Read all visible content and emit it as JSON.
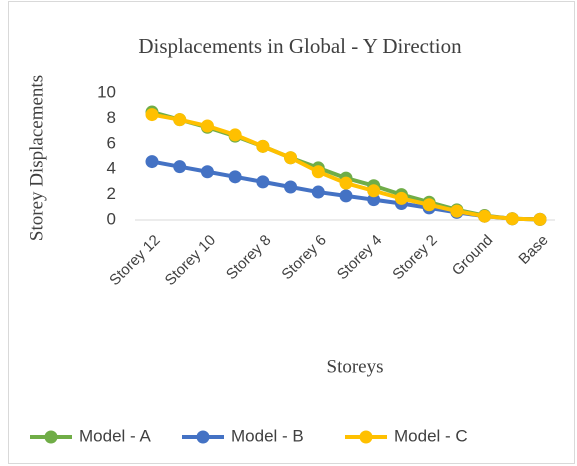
{
  "chart_data": {
    "type": "line",
    "title": "Displacements in Global - Y Direction",
    "x_label": "Storeys",
    "y_label": "Storey Displacements",
    "categories": [
      "Storey 12",
      null,
      "Storey 10",
      null,
      "Storey 8",
      null,
      "Storey 6",
      null,
      "Storey 4",
      null,
      "Storey 2",
      null,
      "Ground",
      null,
      "Base"
    ],
    "series": [
      {
        "name": "Model - A",
        "color": "#70ad47",
        "values": [
          8.5,
          7.9,
          7.3,
          6.6,
          5.8,
          4.9,
          4.1,
          3.3,
          2.7,
          2.0,
          1.4,
          0.8,
          0.35,
          0.1,
          0.05
        ]
      },
      {
        "name": "Model - B",
        "color": "#4472c4",
        "values": [
          4.6,
          4.2,
          3.8,
          3.4,
          3.0,
          2.6,
          2.2,
          1.9,
          1.6,
          1.3,
          0.95,
          0.6,
          0.3,
          0.1,
          0.05
        ]
      },
      {
        "name": "Model - C",
        "color": "#ffc000",
        "values": [
          8.3,
          7.9,
          7.4,
          6.7,
          5.8,
          4.9,
          3.8,
          2.9,
          2.3,
          1.7,
          1.2,
          0.7,
          0.3,
          0.1,
          0.05
        ]
      }
    ],
    "ylim": [
      0,
      10
    ],
    "yticks": [
      0,
      2,
      4,
      6,
      8,
      10
    ],
    "grid": false,
    "legend": "bottom"
  }
}
